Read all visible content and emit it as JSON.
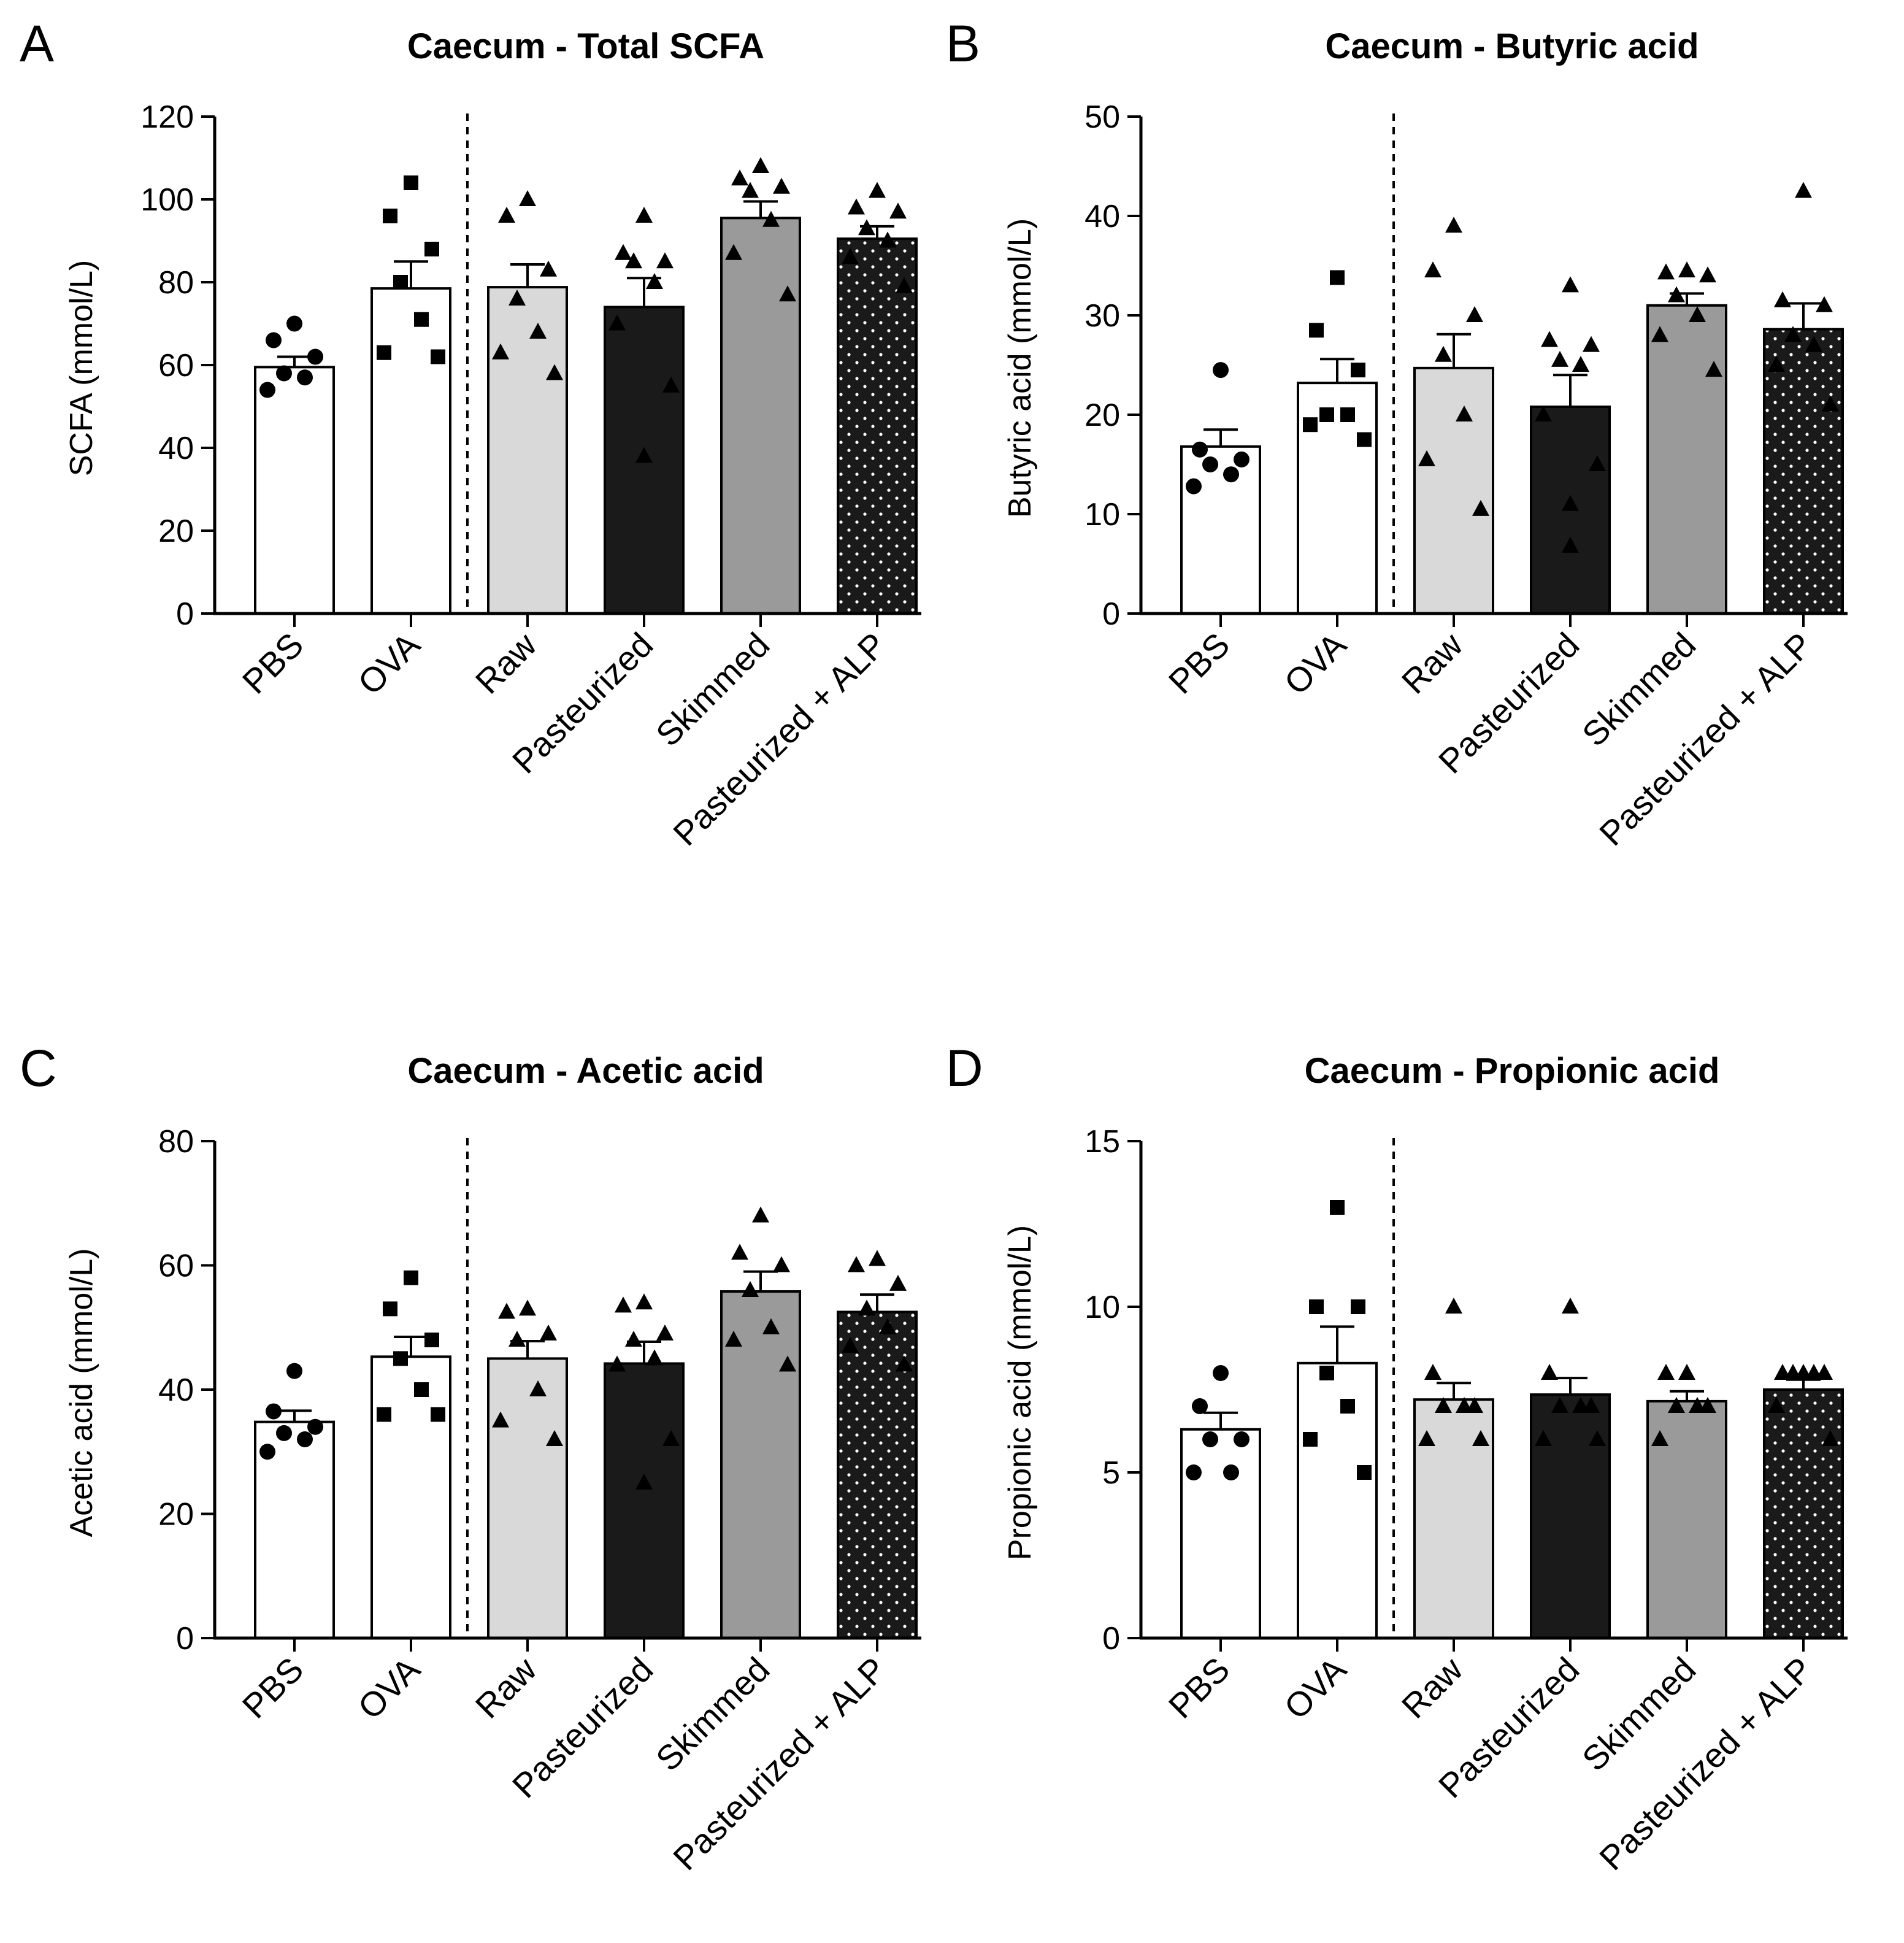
{
  "colors": {
    "ink": "#000000",
    "white_bar": "#ffffff",
    "raw_bar": "#d9d9d9",
    "pasteurized_bar": "#1a1a1a",
    "skimmed_bar": "#9a9a9a",
    "alp_bar": "#1a1a1a",
    "alp_dots": "#ffffff"
  },
  "chart_data": [
    {
      "panel": "A",
      "type": "bar",
      "title": "Caecum - Total SCFA",
      "ylabel": "SCFA (mmol/L)",
      "xlabel": "",
      "ylim": [
        0,
        120
      ],
      "yticks": [
        0,
        20,
        40,
        60,
        80,
        100,
        120
      ],
      "categories": [
        "PBS",
        "OVA",
        "Raw",
        "Pasteurized",
        "Skimmed",
        "Pasteurized + ALP"
      ],
      "marker": [
        "circle",
        "square",
        "triangle",
        "triangle",
        "triangle",
        "triangle"
      ],
      "fill": [
        "white",
        "white",
        "light-gray",
        "black",
        "gray",
        "dotted-black"
      ],
      "separator_after": "OVA",
      "values": [
        59.5,
        78.5,
        78.8,
        74,
        95.5,
        90.5
      ],
      "sem": [
        2.5,
        6.5,
        5.5,
        7.0,
        4.0,
        3.0
      ],
      "points": [
        [
          70,
          66,
          62,
          58,
          54,
          57
        ],
        [
          104,
          96,
          88,
          80,
          71,
          63,
          62
        ],
        [
          100,
          96,
          83,
          76,
          68,
          63,
          58
        ],
        [
          96,
          87,
          85,
          85,
          80,
          70,
          55,
          38
        ],
        [
          108,
          105,
          103,
          102,
          95,
          87,
          77
        ],
        [
          102,
          98,
          97,
          93,
          90,
          86,
          79
        ]
      ]
    },
    {
      "panel": "B",
      "type": "bar",
      "title": "Caecum - Butyric acid",
      "ylabel": "Butyric acid (mmol/L)",
      "xlabel": "",
      "ylim": [
        0,
        50
      ],
      "yticks": [
        0,
        10,
        20,
        30,
        40,
        50
      ],
      "categories": [
        "PBS",
        "OVA",
        "Raw",
        "Pasteurized",
        "Skimmed",
        "Pasteurized + ALP"
      ],
      "marker": [
        "circle",
        "square",
        "triangle",
        "triangle",
        "triangle",
        "triangle"
      ],
      "fill": [
        "white",
        "white",
        "light-gray",
        "black",
        "gray",
        "dotted-black"
      ],
      "separator_after": "OVA",
      "values": [
        16.8,
        23.2,
        24.7,
        20.8,
        31.0,
        28.6
      ],
      "sem": [
        1.7,
        2.4,
        3.4,
        3.2,
        1.2,
        2.6
      ],
      "points": [
        [
          24.5,
          16.5,
          15.5,
          15.0,
          14.0,
          12.8
        ],
        [
          33.8,
          28.5,
          24.5,
          20.0,
          20.0,
          19.0,
          17.5
        ],
        [
          39.0,
          34.5,
          30.0,
          26.0,
          20.0,
          15.5,
          10.5
        ],
        [
          33.0,
          27.5,
          27.0,
          25.5,
          25.0,
          20.0,
          15.0,
          11.0,
          6.8
        ],
        [
          34.5,
          34.0,
          34.3,
          32.0,
          30.0,
          28.0,
          24.5
        ],
        [
          42.5,
          31.5,
          31.0,
          28.0,
          27.0,
          25.0,
          21.0
        ]
      ]
    },
    {
      "panel": "C",
      "type": "bar",
      "title": "Caecum - Acetic acid",
      "ylabel": "Acetic acid (mmol/L)",
      "xlabel": "",
      "ylim": [
        0,
        80
      ],
      "yticks": [
        0,
        20,
        40,
        60,
        80
      ],
      "categories": [
        "PBS",
        "OVA",
        "Raw",
        "Pasteurized",
        "Skimmed",
        "Pasteurized + ALP"
      ],
      "marker": [
        "circle",
        "square",
        "triangle",
        "triangle",
        "triangle",
        "triangle"
      ],
      "fill": [
        "white",
        "white",
        "light-gray",
        "black",
        "gray",
        "dotted-black"
      ],
      "separator_after": "OVA",
      "values": [
        34.8,
        45.3,
        45.0,
        44.2,
        55.8,
        52.5
      ],
      "sem": [
        1.8,
        3.2,
        2.8,
        3.5,
        3.2,
        2.8
      ],
      "points": [
        [
          43.0,
          36.5,
          34.0,
          33.0,
          32.0,
          30.0
        ],
        [
          58.0,
          53.0,
          48.0,
          45.0,
          40.0,
          36.0,
          36.0
        ],
        [
          53.0,
          52.5,
          49.0,
          48.0,
          40.0,
          35.0,
          32.0
        ],
        [
          54.0,
          53.5,
          49.0,
          48.0,
          45.0,
          44.0,
          32.0,
          25.0
        ],
        [
          68.0,
          62.0,
          60.0,
          56.0,
          50.0,
          48.0,
          44.0
        ],
        [
          61.0,
          60.0,
          57.0,
          53.0,
          50.0,
          47.0,
          44.0
        ]
      ]
    },
    {
      "panel": "D",
      "type": "bar",
      "title": "Caecum - Propionic acid",
      "ylabel": "Propionic acid (mmol/L)",
      "xlabel": "",
      "ylim": [
        0,
        15
      ],
      "yticks": [
        0,
        5,
        10,
        15
      ],
      "categories": [
        "PBS",
        "OVA",
        "Raw",
        "Pasteurized",
        "Skimmed",
        "Pasteurized + ALP"
      ],
      "marker": [
        "circle",
        "square",
        "triangle",
        "triangle",
        "triangle",
        "triangle"
      ],
      "fill": [
        "white",
        "white",
        "light-gray",
        "black",
        "gray",
        "dotted-black"
      ],
      "separator_after": "OVA",
      "values": [
        6.3,
        8.3,
        7.2,
        7.35,
        7.15,
        7.5
      ],
      "sem": [
        0.5,
        1.1,
        0.5,
        0.5,
        0.3,
        0.3
      ],
      "points": [
        [
          8.0,
          7.0,
          6.0,
          6.0,
          5.0,
          5.0
        ],
        [
          13.0,
          10.0,
          10.0,
          8.0,
          7.0,
          6.0,
          5.0
        ],
        [
          10.0,
          8.0,
          7.0,
          7.0,
          7.0,
          6.0,
          6.0
        ],
        [
          10.0,
          8.0,
          7.0,
          7.0,
          7.0,
          6.0,
          6.0
        ],
        [
          8.0,
          8.0,
          7.0,
          7.0,
          7.0,
          6.0
        ],
        [
          8.0,
          8.0,
          8.0,
          8.0,
          8.0,
          7.0,
          6.0
        ]
      ]
    }
  ]
}
